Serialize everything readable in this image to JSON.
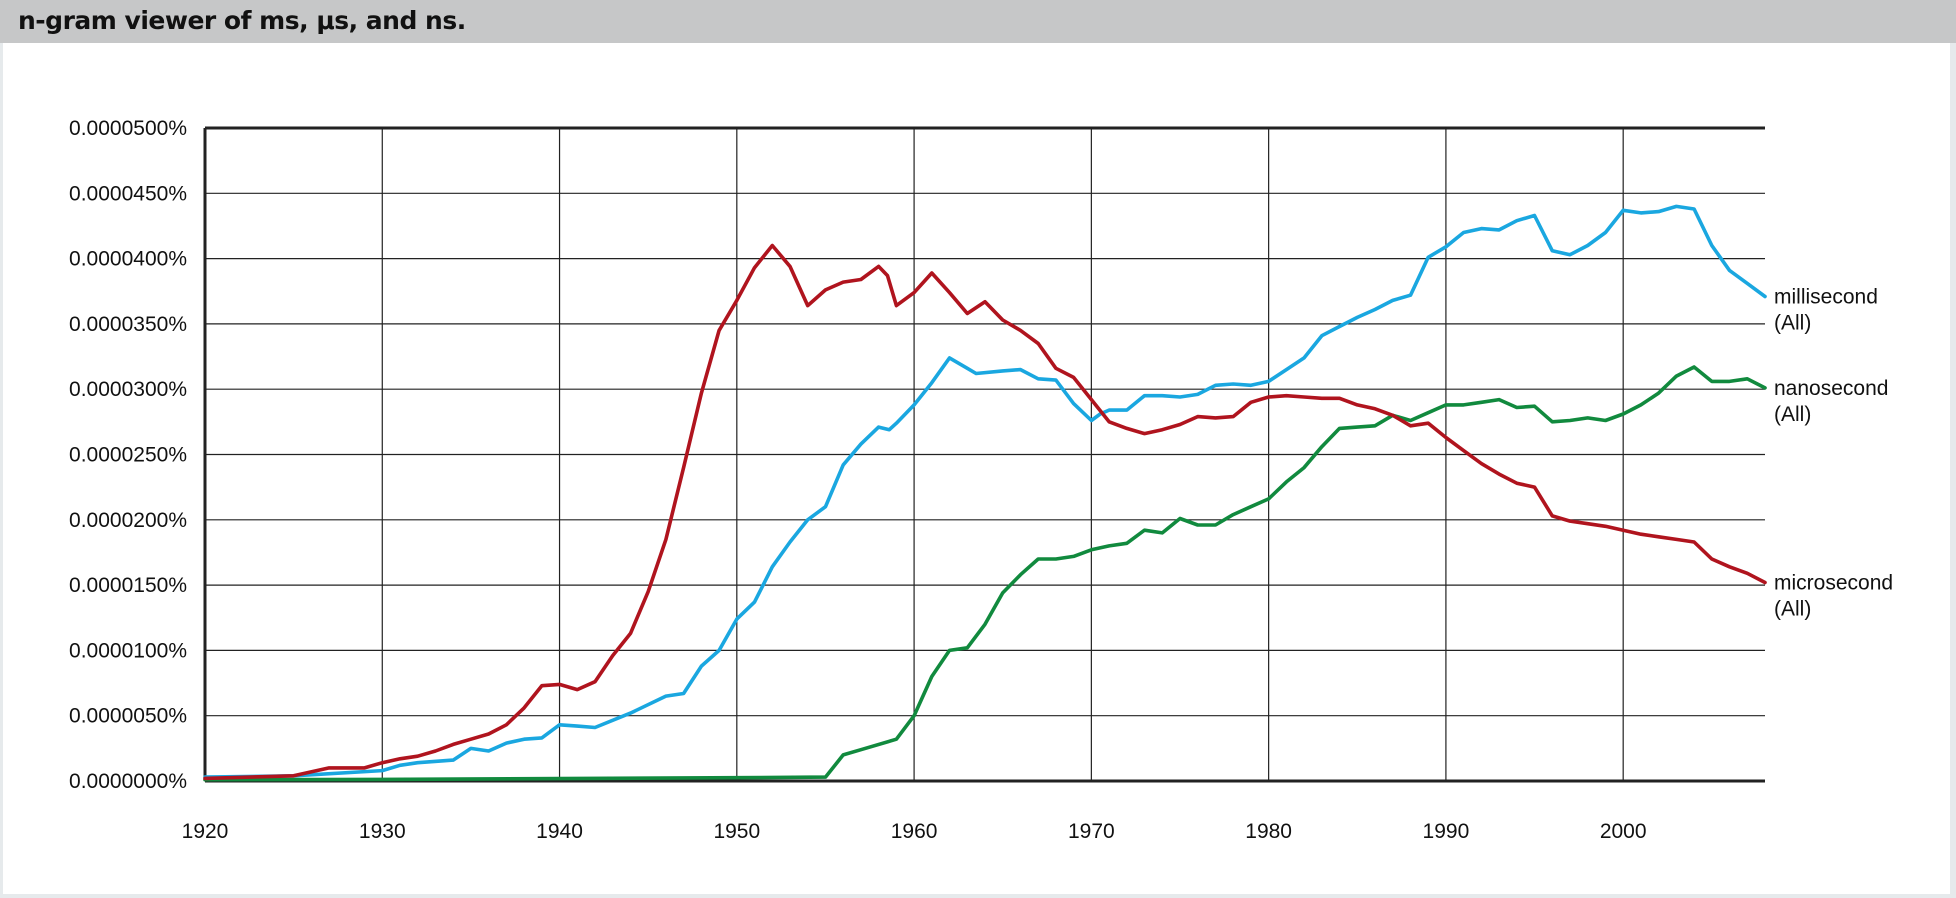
{
  "window": {
    "title": "n-gram viewer of ms, μs, and ns."
  },
  "colors": {
    "millisecond": "#1aa7e0",
    "microsecond": "#b0141e",
    "nanosecond": "#118a3e",
    "grid": "#222222",
    "title_bar": "#c6c7c8"
  },
  "chart_data": {
    "type": "line",
    "title": "n-gram viewer of ms, μs, and ns.",
    "xlabel": "",
    "ylabel": "",
    "xlim": [
      1920,
      2008
    ],
    "ylim": [
      0,
      5e-07
    ],
    "grid": true,
    "legend": "right-end labels",
    "x_ticks": [
      "1920",
      "1930",
      "1940",
      "1950",
      "1960",
      "1970",
      "1980",
      "1990",
      "2000"
    ],
    "x_tick_values": [
      1920,
      1930,
      1940,
      1950,
      1960,
      1970,
      1980,
      1990,
      2000
    ],
    "y_ticks": [
      "0.0000000%",
      "0.0000050%",
      "0.0000100%",
      "0.0000150%",
      "0.0000200%",
      "0.0000250%",
      "0.0000300%",
      "0.0000350%",
      "0.0000400%",
      "0.0000450%",
      "0.0000500%"
    ],
    "y_tick_values": [
      0,
      5e-08,
      1e-07,
      1.5e-07,
      2e-07,
      2.5e-07,
      3e-07,
      3.5e-07,
      4e-07,
      4.5e-07,
      5e-07
    ],
    "series": [
      {
        "name": "millisecond",
        "label_line1": "millisecond",
        "label_line2": "(All)",
        "color": "#1aa7e0",
        "x": [
          1920,
          1925,
          1930,
          1931,
          1932,
          1934,
          1935,
          1936,
          1937,
          1938,
          1939,
          1940,
          1941,
          1942,
          1944,
          1946,
          1947,
          1948,
          1949,
          1950,
          1951,
          1952,
          1953,
          1954,
          1955,
          1956,
          1957,
          1958,
          1958.6,
          1959,
          1960,
          1961,
          1962,
          1963,
          1963.5,
          1965,
          1966,
          1967,
          1968,
          1969,
          1970,
          1970.5,
          1971,
          1972,
          1973,
          1974,
          1975,
          1976,
          1977,
          1978,
          1979,
          1980,
          1981,
          1982,
          1983,
          1984,
          1985,
          1986,
          1987,
          1988,
          1989,
          1990,
          1991,
          1992,
          1993,
          1994,
          1995,
          1996,
          1997,
          1998,
          1999,
          2000,
          2001,
          2002,
          2003,
          2004,
          2005,
          2006,
          2007,
          2008
        ],
        "values": [
          3e-09,
          4e-09,
          8e-09,
          1.2e-08,
          1.4e-08,
          1.6e-08,
          2.5e-08,
          2.3e-08,
          2.9e-08,
          3.2e-08,
          3.3e-08,
          4.3e-08,
          4.2e-08,
          4.1e-08,
          5.2e-08,
          6.5e-08,
          6.7e-08,
          8.8e-08,
          1e-07,
          1.24e-07,
          1.37e-07,
          1.64e-07,
          1.83e-07,
          2e-07,
          2.1e-07,
          2.42e-07,
          2.58e-07,
          2.71e-07,
          2.69e-07,
          2.74e-07,
          2.88e-07,
          3.05e-07,
          3.24e-07,
          3.16e-07,
          3.12e-07,
          3.14e-07,
          3.15e-07,
          3.08e-07,
          3.07e-07,
          2.89e-07,
          2.76e-07,
          2.81e-07,
          2.84e-07,
          2.84e-07,
          2.95e-07,
          2.95e-07,
          2.94e-07,
          2.96e-07,
          3.03e-07,
          3.04e-07,
          3.03e-07,
          3.06e-07,
          3.15e-07,
          3.24e-07,
          3.41e-07,
          3.48e-07,
          3.55e-07,
          3.61e-07,
          3.68e-07,
          3.72e-07,
          4.01e-07,
          4.09e-07,
          4.2e-07,
          4.23e-07,
          4.22e-07,
          4.29e-07,
          4.33e-07,
          4.06e-07,
          4.03e-07,
          4.1e-07,
          4.2e-07,
          4.37e-07,
          4.35e-07,
          4.36e-07,
          4.4e-07,
          4.38e-07,
          4.1e-07,
          3.91e-07,
          3.81e-07,
          3.71e-07
        ]
      },
      {
        "name": "nanosecond",
        "label_line1": "nanosecond",
        "label_line2": "(All)",
        "color": "#118a3e",
        "x": [
          1920,
          1930,
          1940,
          1950,
          1955,
          1956,
          1957,
          1959,
          1960,
          1961,
          1962,
          1963,
          1964,
          1965,
          1966,
          1967,
          1968,
          1969,
          1970,
          1971,
          1972,
          1973,
          1974,
          1975,
          1976,
          1977,
          1978,
          1979,
          1980,
          1981,
          1982,
          1983,
          1984,
          1985,
          1986,
          1987,
          1988,
          1989,
          1990,
          1991,
          1992,
          1993,
          1994,
          1995,
          1996,
          1997,
          1998,
          1999,
          2000,
          2001,
          2002,
          2003,
          2004,
          2005,
          2006,
          2007,
          2008
        ],
        "values": [
          1e-09,
          1.2e-09,
          1.8e-09,
          2.5e-09,
          3e-09,
          2e-08,
          2.4e-08,
          3.2e-08,
          5e-08,
          8e-08,
          1e-07,
          1.02e-07,
          1.2e-07,
          1.44e-07,
          1.58e-07,
          1.7e-07,
          1.7e-07,
          1.72e-07,
          1.77e-07,
          1.8e-07,
          1.82e-07,
          1.92e-07,
          1.9e-07,
          2.01e-07,
          1.96e-07,
          1.96e-07,
          2.04e-07,
          2.1e-07,
          2.16e-07,
          2.29e-07,
          2.4e-07,
          2.56e-07,
          2.7e-07,
          2.71e-07,
          2.72e-07,
          2.8e-07,
          2.76e-07,
          2.82e-07,
          2.88e-07,
          2.88e-07,
          2.9e-07,
          2.92e-07,
          2.86e-07,
          2.87e-07,
          2.75e-07,
          2.76e-07,
          2.78e-07,
          2.76e-07,
          2.81e-07,
          2.88e-07,
          2.97e-07,
          3.1e-07,
          3.17e-07,
          3.06e-07,
          3.06e-07,
          3.08e-07,
          3.01e-07
        ]
      },
      {
        "name": "microsecond",
        "label_line1": "microsecond",
        "label_line2": "(All)",
        "color": "#b0141e",
        "x": [
          1920,
          1925,
          1927,
          1929,
          1930,
          1931,
          1932,
          1933,
          1934,
          1935,
          1936,
          1937,
          1938,
          1939,
          1940,
          1941,
          1942,
          1943,
          1944,
          1945,
          1946,
          1947,
          1948,
          1949,
          1950,
          1951,
          1952,
          1953,
          1954,
          1955,
          1956,
          1957,
          1958,
          1958.5,
          1959,
          1960,
          1961,
          1962,
          1963,
          1964,
          1965,
          1966,
          1967,
          1968,
          1969,
          1970,
          1971,
          1972,
          1973,
          1974,
          1975,
          1976,
          1977,
          1978,
          1979,
          1980,
          1981,
          1982,
          1983,
          1984,
          1985,
          1986,
          1987,
          1988,
          1989,
          1990,
          1991,
          1992,
          1993,
          1994,
          1995,
          1996,
          1997,
          1998,
          1999,
          2000,
          2001,
          2002,
          2003,
          2004,
          2005,
          2006,
          2007,
          2008
        ],
        "values": [
          2e-09,
          4e-09,
          1e-08,
          1e-08,
          1.4e-08,
          1.7e-08,
          1.9e-08,
          2.3e-08,
          2.8e-08,
          3.2e-08,
          3.6e-08,
          4.3e-08,
          5.6e-08,
          7.3e-08,
          7.4e-08,
          7e-08,
          7.6e-08,
          9.6e-08,
          1.13e-07,
          1.45e-07,
          1.85e-07,
          2.4e-07,
          2.97e-07,
          3.45e-07,
          3.68e-07,
          3.93e-07,
          4.1e-07,
          3.94e-07,
          3.64e-07,
          3.76e-07,
          3.82e-07,
          3.84e-07,
          3.94e-07,
          3.87e-07,
          3.64e-07,
          3.74e-07,
          3.89e-07,
          3.74e-07,
          3.58e-07,
          3.67e-07,
          3.53e-07,
          3.45e-07,
          3.35e-07,
          3.16e-07,
          3.09e-07,
          2.92e-07,
          2.75e-07,
          2.7e-07,
          2.66e-07,
          2.69e-07,
          2.73e-07,
          2.79e-07,
          2.78e-07,
          2.79e-07,
          2.9e-07,
          2.94e-07,
          2.95e-07,
          2.94e-07,
          2.93e-07,
          2.93e-07,
          2.88e-07,
          2.85e-07,
          2.8e-07,
          2.72e-07,
          2.74e-07,
          2.63e-07,
          2.53e-07,
          2.43e-07,
          2.35e-07,
          2.28e-07,
          2.25e-07,
          2.03e-07,
          1.99e-07,
          1.97e-07,
          1.95e-07,
          1.92e-07,
          1.89e-07,
          1.87e-07,
          1.85e-07,
          1.83e-07,
          1.7e-07,
          1.64e-07,
          1.59e-07,
          1.52e-07
        ]
      }
    ]
  }
}
